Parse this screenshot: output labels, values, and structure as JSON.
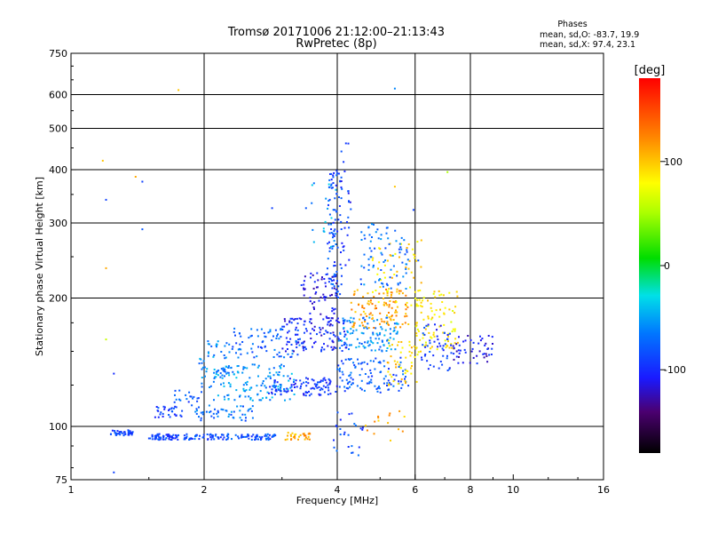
{
  "chart_data": {
    "type": "scatter",
    "title": "Tromsø 20171006 21:12:00–21:13:43",
    "subtitle": "RwPretec (8p)",
    "xlabel": "Frequency [MHz]",
    "ylabel": "Stationary phase Virtual Height [km]",
    "x_scale": "log",
    "y_scale": "log",
    "xlim": [
      1,
      16
    ],
    "ylim": [
      75,
      750
    ],
    "x_ticks": [
      1,
      2,
      4,
      6,
      8,
      10,
      16
    ],
    "x_tick_labels": [
      "1",
      "2",
      "4",
      "6",
      "8",
      "10",
      "16"
    ],
    "x_grid_lines": [
      2,
      4,
      6,
      8
    ],
    "y_ticks": [
      75,
      100,
      200,
      300,
      400,
      500,
      600,
      750
    ],
    "y_tick_labels": [
      "75",
      "100",
      "200",
      "300",
      "400",
      "500",
      "600",
      "750"
    ],
    "y_grid_lines": [
      100,
      200,
      300,
      400,
      500,
      600
    ],
    "grid": true,
    "info": {
      "heading": "Phases",
      "line_o": "mean, sd,O: -83.7, 19.9",
      "line_x": "mean, sd,X:  97.4, 23.1"
    },
    "colorbar": {
      "label": "[deg]",
      "range": [
        -180,
        180
      ],
      "ticks": [
        100,
        0,
        -100
      ],
      "tick_labels": [
        "100",
        "0",
        "-100"
      ]
    },
    "point_clusters": [
      {
        "x": [
          1.23,
          1.38
        ],
        "y": [
          95,
          98
        ],
        "n": 40,
        "phase": -90
      },
      {
        "x": [
          1.5,
          1.75
        ],
        "y": [
          93,
          96
        ],
        "n": 60,
        "phase": -92
      },
      {
        "x": [
          1.8,
          2.9
        ],
        "y": [
          93,
          96
        ],
        "n": 110,
        "phase": -85
      },
      {
        "x": [
          3.05,
          3.5
        ],
        "y": [
          93,
          97
        ],
        "n": 30,
        "phase": 110
      },
      {
        "x": [
          1.55,
          1.8
        ],
        "y": [
          105,
          112
        ],
        "n": 30,
        "phase": -88
      },
      {
        "x": [
          1.9,
          2.6
        ],
        "y": [
          103,
          112
        ],
        "n": 50,
        "phase": -70
      },
      {
        "x": [
          1.7,
          2.0
        ],
        "y": [
          112,
          122
        ],
        "n": 20,
        "phase": -80
      },
      {
        "x": [
          1.95,
          2.3
        ],
        "y": [
          122,
          160
        ],
        "n": 55,
        "phase": -60
      },
      {
        "x": [
          2.1,
          3.2
        ],
        "y": [
          115,
          140
        ],
        "n": 130,
        "phase": -55
      },
      {
        "x": [
          2.3,
          3.3
        ],
        "y": [
          145,
          170
        ],
        "n": 80,
        "phase": -75
      },
      {
        "x": [
          2.8,
          4.0
        ],
        "y": [
          118,
          130
        ],
        "n": 100,
        "phase": -95
      },
      {
        "x": [
          3.0,
          4.2
        ],
        "y": [
          150,
          180
        ],
        "n": 120,
        "phase": -105
      },
      {
        "x": [
          3.3,
          4.0
        ],
        "y": [
          180,
          230
        ],
        "n": 60,
        "phase": -110
      },
      {
        "x": [
          3.8,
          4.1
        ],
        "y": [
          200,
          400
        ],
        "n": 90,
        "phase": -85
      },
      {
        "x": [
          4.05,
          4.3
        ],
        "y": [
          230,
          480
        ],
        "n": 25,
        "phase": -95
      },
      {
        "x": [
          3.5,
          4.0
        ],
        "y": [
          260,
          380
        ],
        "n": 20,
        "phase": -50
      },
      {
        "x": [
          4.0,
          5.8
        ],
        "y": [
          120,
          145
        ],
        "n": 110,
        "phase": -80
      },
      {
        "x": [
          4.0,
          5.5
        ],
        "y": [
          150,
          180
        ],
        "n": 110,
        "phase": -60
      },
      {
        "x": [
          4.3,
          5.8
        ],
        "y": [
          170,
          210
        ],
        "n": 100,
        "phase": 115
      },
      {
        "x": [
          4.8,
          6.2
        ],
        "y": [
          190,
          280
        ],
        "n": 60,
        "phase": 90
      },
      {
        "x": [
          5.2,
          6.2
        ],
        "y": [
          125,
          160
        ],
        "n": 50,
        "phase": 95
      },
      {
        "x": [
          4.5,
          5.8
        ],
        "y": [
          210,
          300
        ],
        "n": 80,
        "phase": -70
      },
      {
        "x": [
          6.0,
          7.5
        ],
        "y": [
          150,
          210
        ],
        "n": 90,
        "phase": 85
      },
      {
        "x": [
          6.2,
          7.3
        ],
        "y": [
          135,
          175
        ],
        "n": 50,
        "phase": -95
      },
      {
        "x": [
          7.3,
          9.0
        ],
        "y": [
          140,
          165
        ],
        "n": 50,
        "phase": -110
      },
      {
        "x": [
          3.9,
          4.6
        ],
        "y": [
          85,
          110
        ],
        "n": 25,
        "phase": -85
      },
      {
        "x": [
          4.6,
          5.7
        ],
        "y": [
          88,
          110
        ],
        "n": 15,
        "phase": 110
      }
    ],
    "point_outliers": [
      {
        "x": 1.18,
        "y": 420,
        "phase": 100
      },
      {
        "x": 1.2,
        "y": 340,
        "phase": -90
      },
      {
        "x": 1.2,
        "y": 235,
        "phase": 110
      },
      {
        "x": 1.2,
        "y": 160,
        "phase": 60
      },
      {
        "x": 1.25,
        "y": 133,
        "phase": -100
      },
      {
        "x": 1.25,
        "y": 78,
        "phase": -90
      },
      {
        "x": 1.4,
        "y": 385,
        "phase": 110
      },
      {
        "x": 1.45,
        "y": 375,
        "phase": -90
      },
      {
        "x": 1.45,
        "y": 290,
        "phase": -80
      },
      {
        "x": 1.75,
        "y": 615,
        "phase": 100
      },
      {
        "x": 2.85,
        "y": 325,
        "phase": -90
      },
      {
        "x": 3.4,
        "y": 325,
        "phase": -80
      },
      {
        "x": 5.4,
        "y": 620,
        "phase": -60
      },
      {
        "x": 5.95,
        "y": 322,
        "phase": -90
      },
      {
        "x": 6.1,
        "y": 245,
        "phase": -80
      },
      {
        "x": 5.4,
        "y": 365,
        "phase": 100
      },
      {
        "x": 7.1,
        "y": 395,
        "phase": 50
      }
    ]
  }
}
